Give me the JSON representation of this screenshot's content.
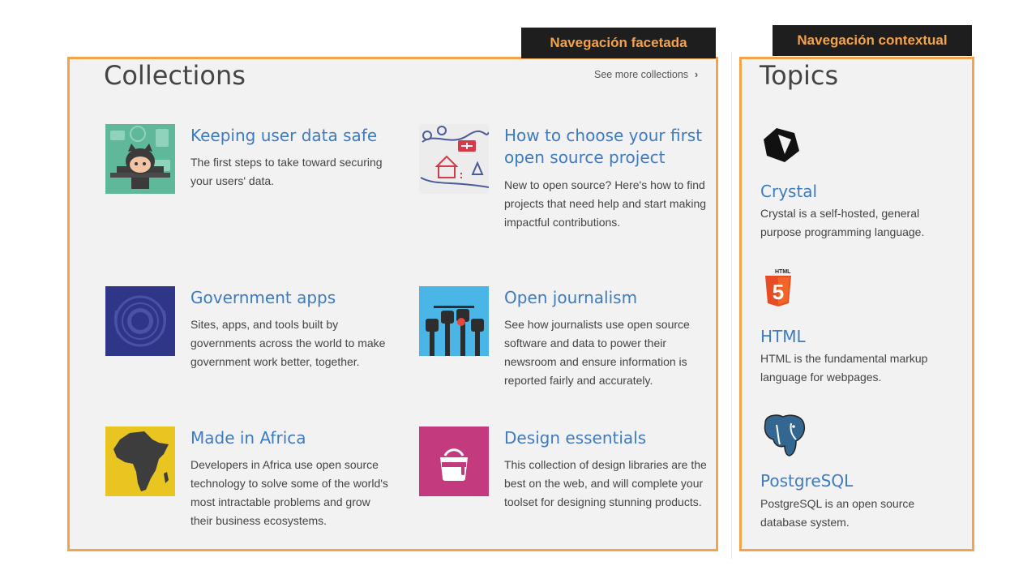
{
  "annotations": {
    "faceted_nav_label": "Navegación facetada",
    "contextual_nav_label": "Navegación contextual"
  },
  "collections": {
    "title": "Collections",
    "see_more": "See more collections",
    "items": [
      {
        "title": "Keeping user data safe",
        "description": "The first steps to take toward securing your users' data.",
        "icon": "octocat-security-thumbnail"
      },
      {
        "title": "How to choose your first open source project",
        "description": "New to open source? Here's how to find projects that need help and start making impactful contributions.",
        "icon": "map-house-thumbnail"
      },
      {
        "title": "Government apps",
        "description": "Sites, apps, and tools built by governments across the world to make government work better, together.",
        "icon": "government-seal-thumbnail"
      },
      {
        "title": "Open journalism",
        "description": "See how journalists use open source software and data to power their newsroom and ensure information is reported fairly and accurately.",
        "icon": "raised-fists-thumbnail"
      },
      {
        "title": "Made in Africa",
        "description": "Developers in Africa use open source technology to solve some of the world's most intractable problems and grow their business ecosystems.",
        "icon": "africa-map-thumbnail"
      },
      {
        "title": "Design essentials",
        "description": "This collection of design libraries are the best on the web, and will complete your toolset for designing stunning products.",
        "icon": "paint-bucket-thumbnail"
      }
    ]
  },
  "topics": {
    "title": "Topics",
    "items": [
      {
        "title": "Crystal",
        "description": "Crystal is a self-hosted, general purpose programming language.",
        "icon": "crystal-icon"
      },
      {
        "title": "HTML",
        "description": "HTML is the fundamental markup language for webpages.",
        "icon": "html5-icon",
        "icon_text": "HTML",
        "icon_number": "5"
      },
      {
        "title": "PostgreSQL",
        "description": "PostgreSQL is an open source database system.",
        "icon": "postgresql-elephant-icon"
      }
    ]
  },
  "colors": {
    "annotation_border": "#f5a34a",
    "link": "#3e7bc0",
    "panel_bg": "#f2f2f2"
  }
}
